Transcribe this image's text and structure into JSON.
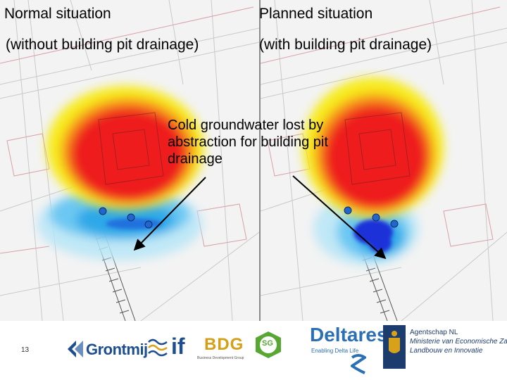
{
  "panels": {
    "left": {
      "title": "Normal situation",
      "subtitle": "(without building pit drainage)"
    },
    "right": {
      "title": "Planned situation",
      "subtitle": "(with building pit drainage)"
    }
  },
  "annotation": {
    "lines": [
      "Cold groundwater lost by",
      "abstraction for building pit",
      "drainage"
    ]
  },
  "footer": {
    "page_number": "13",
    "logos": {
      "grontmij": "Grontmij",
      "if": "if",
      "bdg": "BDG",
      "bdg_sub": "Business Development Group",
      "sg": "SG",
      "deltares": "Deltares",
      "deltares_tagline": "Enabling Delta Life",
      "agentschap_lines": [
        "Agentschap NL",
        "Ministerie van Economische Zaken,",
        "Landbouw en Innovatie"
      ]
    }
  },
  "colors": {
    "warm_outer": "#f7ec1f",
    "warm_mid": "#f7a11a",
    "warm_inner": "#ee1c1c",
    "cold_light": "#9edcf5",
    "cold_mid": "#2fa8e8",
    "cold_deep": "#1c30d8",
    "well_dot": "#2266cc",
    "grontmij_blue": "#1d4e8f",
    "deltares_blue": "#2b6fb5",
    "sg_green": "#58a732"
  }
}
